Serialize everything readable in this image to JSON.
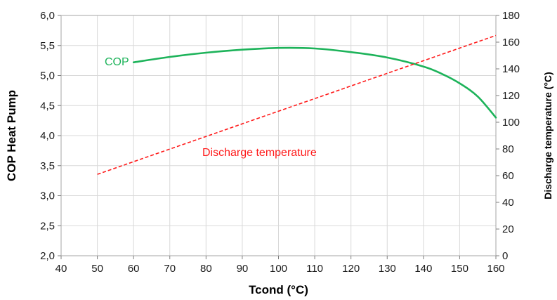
{
  "chart_data": {
    "type": "line",
    "xlabel": "Tcond (°C)",
    "ylabel": "COP Heat Pump",
    "y2label": "Discharge temperature (°C)",
    "xlim": [
      40,
      160
    ],
    "ylim": [
      2.0,
      6.0
    ],
    "y2lim": [
      0,
      180
    ],
    "x_ticks": [
      "40",
      "50",
      "60",
      "70",
      "80",
      "90",
      "100",
      "110",
      "120",
      "130",
      "140",
      "150",
      "160"
    ],
    "y_ticks": [
      "2,0",
      "2,5",
      "3,0",
      "3,5",
      "4,0",
      "4,5",
      "5,0",
      "5,5",
      "6,0"
    ],
    "y2_ticks": [
      "0",
      "20",
      "40",
      "60",
      "80",
      "100",
      "120",
      "140",
      "160",
      "180"
    ],
    "grid": true,
    "series": [
      {
        "name": "COP",
        "axis": "left",
        "color": "#1db35a",
        "style": "solid",
        "x": [
          60,
          70,
          80,
          90,
          100,
          110,
          120,
          130,
          140,
          145,
          150,
          155,
          160
        ],
        "y": [
          5.22,
          5.31,
          5.38,
          5.43,
          5.46,
          5.45,
          5.39,
          5.3,
          5.15,
          5.03,
          4.87,
          4.65,
          4.3
        ]
      },
      {
        "name": "Discharge temperature",
        "axis": "right",
        "color": "#ff1a1a",
        "style": "dashed",
        "x": [
          50,
          160
        ],
        "y": [
          61,
          165
        ]
      }
    ]
  }
}
